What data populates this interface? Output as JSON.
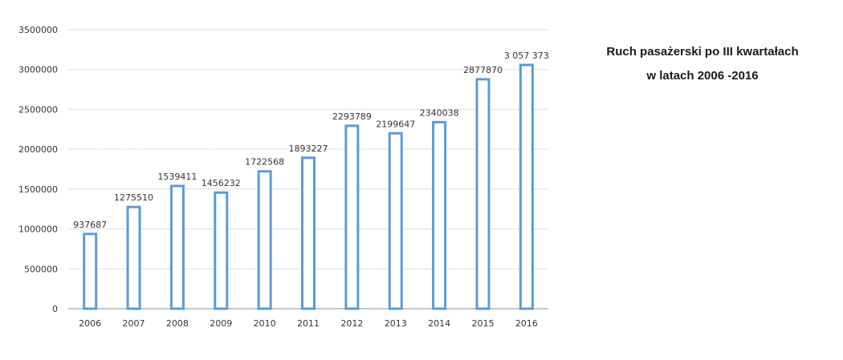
{
  "chart_data": {
    "type": "bar",
    "title_lines": [
      "Ruch pasażerski po III kwartałach",
      "w latach 2006 -2016"
    ],
    "categories": [
      "2006",
      "2007",
      "2008",
      "2009",
      "2010",
      "2011",
      "2012",
      "2013",
      "2014",
      "2015",
      "2016"
    ],
    "values": [
      937687,
      1275510,
      1539411,
      1456232,
      1722568,
      1893227,
      2293789,
      2199647,
      2340038,
      2877870,
      3057373
    ],
    "data_labels": [
      "937687",
      "1275510",
      "1539411",
      "1456232",
      "1722568",
      "1893227",
      "2293789",
      "2199647",
      "2340038",
      "2877870",
      "3 057 373"
    ],
    "y_ticks": [
      0,
      500000,
      1000000,
      1500000,
      2000000,
      2500000,
      3000000,
      3500000
    ],
    "y_tick_labels": [
      "0",
      "500000",
      "1000000",
      "1500000",
      "2000000",
      "2500000",
      "3000000",
      "3500000"
    ],
    "ylim": [
      0,
      3500000
    ],
    "xlabel": "",
    "ylabel": "",
    "grid": true,
    "legend": "none",
    "bar_color": "#5b9bd5"
  }
}
